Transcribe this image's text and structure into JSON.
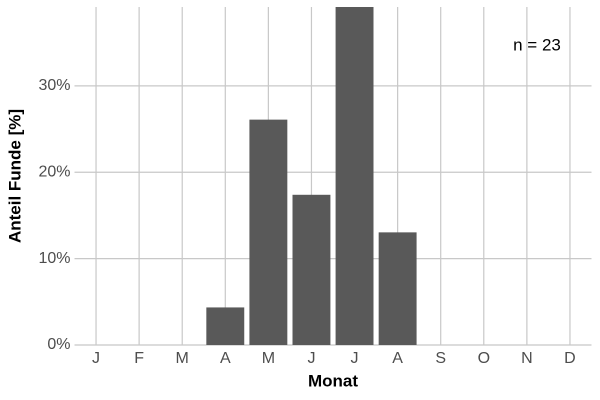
{
  "chart_data": {
    "type": "bar",
    "x_label": "Monat",
    "y_label": "Anteil Funde [%]",
    "annotation": "n = 23",
    "categories": [
      "J",
      "F",
      "M",
      "A",
      "M",
      "J",
      "J",
      "A",
      "S",
      "O",
      "N",
      "D"
    ],
    "values": [
      0,
      0,
      0,
      4.35,
      26.09,
      17.39,
      39.13,
      13.04,
      0,
      0,
      0,
      0
    ],
    "color": "#595959",
    "ylim": [
      0,
      39.13
    ],
    "yticks": [
      {
        "value": 0,
        "label": "0%"
      },
      {
        "value": 10,
        "label": "10%"
      },
      {
        "value": 20,
        "label": "20%"
      },
      {
        "value": 30,
        "label": "30%"
      }
    ],
    "grid": true
  }
}
